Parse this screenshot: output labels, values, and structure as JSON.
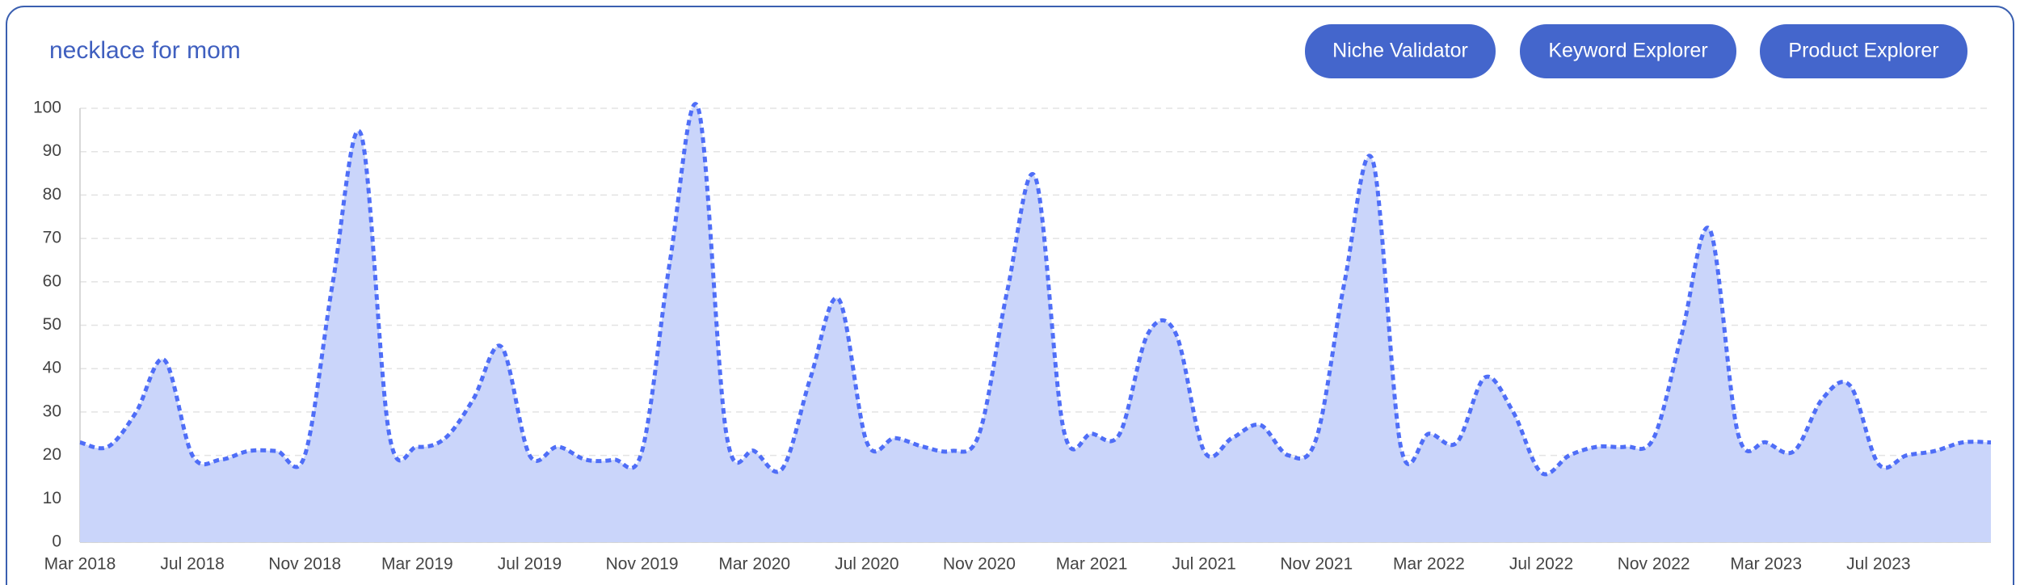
{
  "chart_data": {
    "type": "area",
    "title": "necklace for mom",
    "categories": [
      "Mar 2018",
      null,
      null,
      null,
      "Jul 2018",
      null,
      null,
      null,
      "Nov 2018",
      null,
      null,
      null,
      "Mar 2019",
      null,
      null,
      null,
      "Jul 2019",
      null,
      null,
      null,
      "Nov 2019",
      null,
      null,
      null,
      "Mar 2020",
      null,
      null,
      null,
      "Jul 2020",
      null,
      null,
      null,
      "Nov 2020",
      null,
      null,
      null,
      "Mar 2021",
      null,
      null,
      null,
      "Jul 2021",
      null,
      null,
      null,
      "Nov 2021",
      null,
      null,
      null,
      "Mar 2022",
      null,
      null,
      null,
      "Jul 2022",
      null,
      null,
      null,
      "Nov 2022",
      null,
      null,
      null,
      "Mar 2023",
      null,
      null,
      null,
      "Jul 2023",
      null,
      null,
      null,
      null
    ],
    "values": [
      23,
      22,
      30,
      42,
      20,
      19,
      21,
      21,
      20,
      60,
      94,
      25,
      22,
      24,
      33,
      45,
      20,
      22,
      19,
      19,
      21,
      65,
      100,
      25,
      21,
      17,
      38,
      56,
      23,
      24,
      22,
      21,
      25,
      58,
      84,
      26,
      25,
      25,
      48,
      48,
      21,
      24,
      27,
      20,
      24,
      60,
      88,
      22,
      25,
      23,
      38,
      30,
      16,
      20,
      22,
      22,
      24,
      48,
      72,
      25,
      23,
      21,
      33,
      36,
      18,
      20,
      21,
      23,
      23
    ],
    "color": "#4f6ef7",
    "fill": "#cad5fa",
    "ylim": [
      0,
      100
    ],
    "yticks": [
      0,
      10,
      20,
      30,
      40,
      50,
      60,
      70,
      80,
      90,
      100
    ],
    "grid": true
  },
  "buttons": [
    "Niche Validator",
    "Keyword Explorer",
    "Product Explorer"
  ]
}
